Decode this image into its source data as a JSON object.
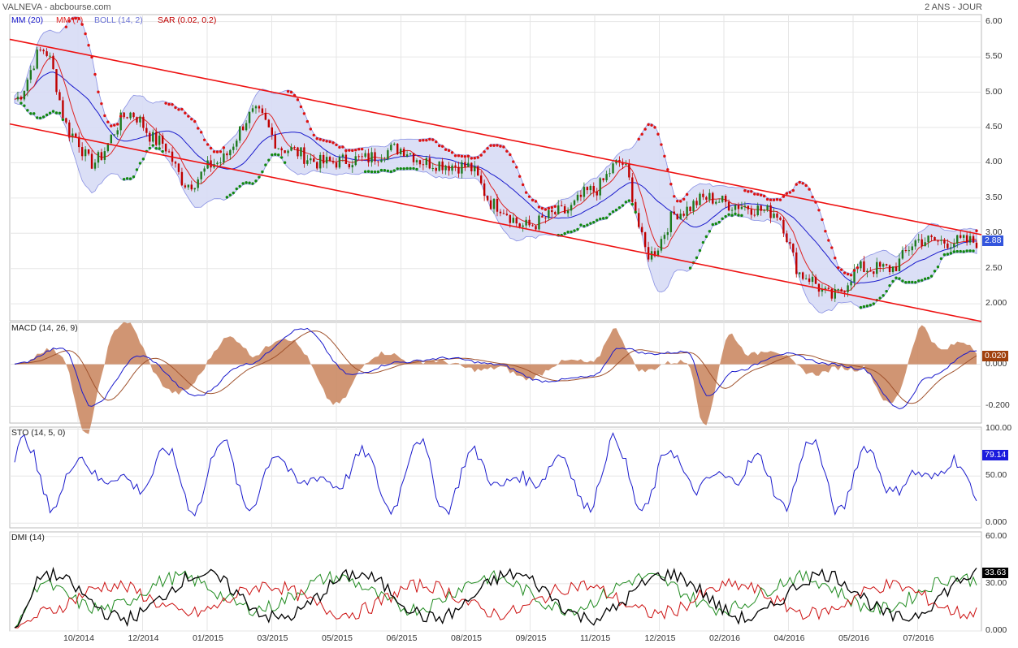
{
  "header": {
    "title": "VALNEVA - abcbourse.com",
    "period": "2 ANS - JOUR"
  },
  "legend": {
    "mm20": "MM (20)",
    "mm7": "MM (7)",
    "boll": "BOLL (14, 2)",
    "sar": "SAR (0.02, 0.2)"
  },
  "colors": {
    "price_up": "#1e7a1e",
    "price_down": "#c00000",
    "mm20": "#1a1acc",
    "mm7": "#dd2222",
    "boll_fill": "#d8dcf6",
    "boll_line": "#7c84e0",
    "sar_above": "#dd1111",
    "sar_below": "#118811",
    "channel": "#ee1111",
    "macd_hist": "#c8825a",
    "macd_line": "#1a1acc",
    "macd_signal": "#a0522d",
    "sto": "#1a1acc",
    "dmi_plus": "#1e8a1e",
    "dmi_minus": "#cc1111",
    "adx": "#000000",
    "badge_price": "#3355dd",
    "badge_macd": "#a0400c",
    "badge_sto": "#1a1add",
    "badge_dmi": "#000000"
  },
  "chart_data": [
    {
      "type": "line",
      "name": "price",
      "x_labels": [
        "10/2014",
        "12/2014",
        "01/2015",
        "03/2015",
        "05/2015",
        "06/2015",
        "08/2015",
        "09/2015",
        "11/2015",
        "12/2015",
        "02/2016",
        "04/2016",
        "05/2016",
        "07/2016"
      ],
      "y_ticks": [
        "6.00",
        "5.50",
        "5.00",
        "4.50",
        "4.00",
        "3.50",
        "3.00",
        "2.50",
        "2.000"
      ],
      "ylim": [
        1.76,
        6.1
      ],
      "x_knots": [
        0,
        0.03,
        0.06,
        0.08,
        0.12,
        0.15,
        0.18,
        0.21,
        0.25,
        0.28,
        0.32,
        0.36,
        0.4,
        0.43,
        0.47,
        0.5,
        0.53,
        0.57,
        0.6,
        0.63,
        0.66,
        0.69,
        0.72,
        0.75,
        0.79,
        0.82,
        0.85,
        0.88,
        0.91,
        0.94,
        0.97,
        1.0
      ],
      "close_knots": [
        4.9,
        5.6,
        4.4,
        4.0,
        4.7,
        4.3,
        3.7,
        4.0,
        4.7,
        4.2,
        4.0,
        4.05,
        4.2,
        4.0,
        3.95,
        3.4,
        3.1,
        3.3,
        3.6,
        4.0,
        2.7,
        3.3,
        3.5,
        3.4,
        3.3,
        2.4,
        2.1,
        2.5,
        2.5,
        2.9,
        2.88,
        2.88
      ],
      "channel_upper": [
        5.75,
        2.98
      ],
      "channel_lower": [
        4.55,
        1.75
      ],
      "last_value": "2.88"
    },
    {
      "type": "line",
      "name": "MACD (14, 26, 9)",
      "y_ticks": [
        "0.000",
        "-0.200"
      ],
      "ylim": [
        -0.28,
        0.2
      ],
      "x_knots": [
        0,
        0.05,
        0.08,
        0.13,
        0.19,
        0.24,
        0.3,
        0.35,
        0.4,
        0.45,
        0.5,
        0.55,
        0.6,
        0.63,
        0.66,
        0.7,
        0.72,
        0.75,
        0.8,
        0.85,
        0.88,
        0.92,
        0.95,
        1.0
      ],
      "macd_knots": [
        0,
        0.08,
        -0.2,
        0.04,
        -0.15,
        0.0,
        0.17,
        -0.05,
        0.01,
        0.03,
        0.0,
        -0.08,
        -0.06,
        0.08,
        0.05,
        0.06,
        -0.15,
        -0.03,
        0.05,
        0.0,
        -0.02,
        -0.21,
        -0.06,
        0.07
      ],
      "last_value": "0.020"
    },
    {
      "type": "line",
      "name": "STO (14, 5, 0)",
      "y_ticks": [
        "100.00",
        "50.00",
        "0.000"
      ],
      "ylim": [
        -5,
        102
      ],
      "last_value": "79.14"
    },
    {
      "type": "line",
      "name": "DMI (14)",
      "y_ticks": [
        "60.00",
        "30.00",
        "0.000"
      ],
      "ylim": [
        0,
        63
      ],
      "last_value": "33.63"
    }
  ]
}
